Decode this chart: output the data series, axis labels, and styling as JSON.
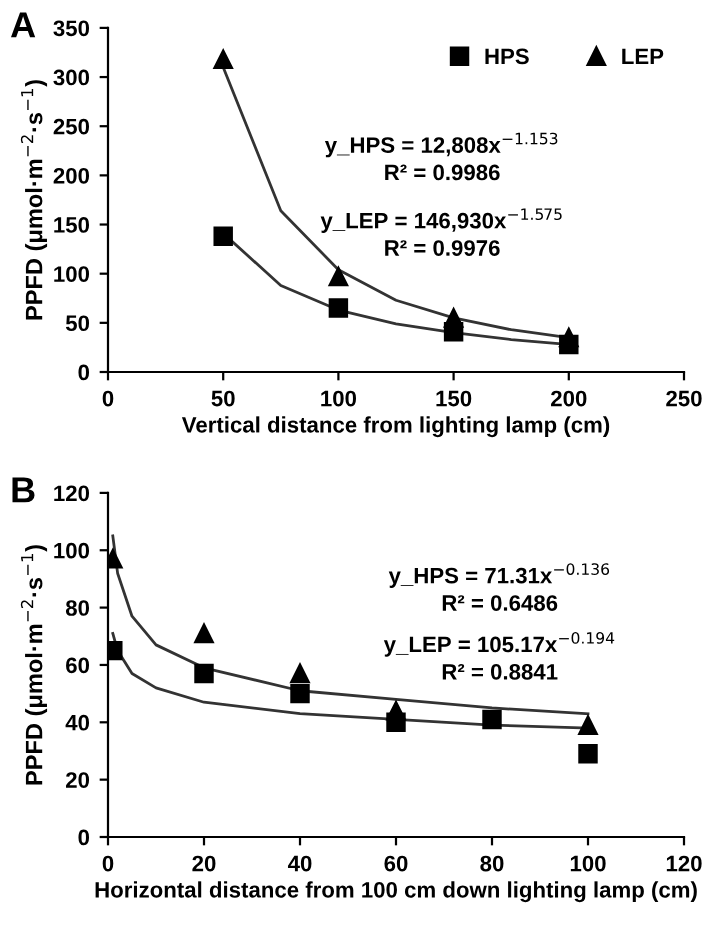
{
  "chart_data": [
    {
      "type": "scatter",
      "title": "A",
      "xlabel": "Vertical distance from lighting lamp (cm)",
      "ylabel": "PPFD (μmol·m$^{−2}$·s$^{−1}$)",
      "xlim": [
        0,
        250
      ],
      "xticks": [
        0,
        50,
        100,
        150,
        200,
        250
      ],
      "ylim": [
        0,
        350
      ],
      "yticks": [
        0,
        50,
        100,
        150,
        200,
        250,
        300,
        350
      ],
      "grid": false,
      "legend": "top right",
      "annotations": [
        "y_HPS = 12,808x$^{−1.153}$\nR² = 0.9986",
        "y_LEP = 146,930x$^{−1.575}$\nR² = 0.9976"
      ],
      "series": [
        {
          "name": "HPS",
          "color": "#000000",
          "marker": "square",
          "x": [
            50,
            100,
            150,
            200
          ],
          "values": [
            138,
            65,
            41,
            28
          ]
        },
        {
          "name": "LEP",
          "color": "#000000",
          "marker": "triangle",
          "x": [
            50,
            100,
            150,
            200
          ],
          "values": [
            318,
            97,
            55,
            35
          ]
        },
        {
          "type": "line",
          "color": "#333333",
          "marker": "none",
          "x": [
            50,
            75,
            100,
            125,
            150,
            175,
            200
          ],
          "values": [
            141,
            88,
            63,
            49,
            40,
            33,
            28
          ]
        },
        {
          "type": "line",
          "color": "#333333",
          "marker": "none",
          "x": [
            50,
            75,
            100,
            125,
            150,
            175,
            200
          ],
          "values": [
            310,
            164,
            104,
            73,
            55,
            43,
            35
          ]
        }
      ]
    },
    {
      "type": "scatter",
      "title": "B",
      "xlabel": "Horizontal distance from 100 cm down lighting lamp (cm)",
      "ylabel": "PPFD (μmol·m$^{−2}$·s$^{−1}$)",
      "xlim": [
        0,
        120
      ],
      "xticks": [
        0,
        20,
        40,
        60,
        80,
        100,
        120
      ],
      "ylim": [
        0,
        120
      ],
      "yticks": [
        0,
        20,
        40,
        60,
        80,
        100,
        120
      ],
      "grid": false,
      "legend": false,
      "annotations": [
        "y_HPS = 71.31x$^{−0.136}$\nR² = 0.6486",
        "y_LEP = 105.17x$^{−0.194}$\nR² = 0.8841"
      ],
      "series": [
        {
          "color": "#000000",
          "marker": "square",
          "x": [
            1,
            20,
            40,
            60,
            80,
            100
          ],
          "values": [
            65,
            57,
            50,
            40,
            41,
            29
          ]
        },
        {
          "color": "#000000",
          "marker": "triangle",
          "x": [
            1,
            20,
            40,
            60,
            100
          ],
          "values": [
            97,
            71,
            57,
            44,
            39
          ]
        },
        {
          "type": "line",
          "color": "#333333",
          "marker": "none",
          "x": [
            1,
            2,
            5,
            10,
            20,
            40,
            60,
            80,
            100
          ],
          "values": [
            71,
            65,
            57,
            52,
            47,
            43,
            41,
            39,
            38
          ]
        },
        {
          "type": "line",
          "color": "#333333",
          "marker": "none",
          "x": [
            1,
            2,
            5,
            10,
            20,
            40,
            60,
            80,
            100
          ],
          "values": [
            105,
            92,
            77,
            67,
            59,
            51,
            48,
            45,
            43
          ]
        }
      ]
    }
  ]
}
